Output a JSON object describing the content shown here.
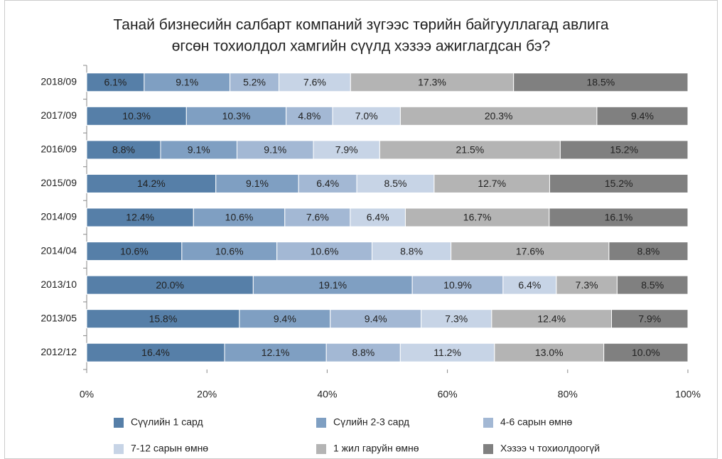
{
  "chart_data": {
    "type": "bar",
    "orientation": "horizontal",
    "stack": "percent",
    "title": [
      "Танай бизнесийн салбарт компаний зүгээс төрийн байгууллагад авлига",
      "өгсөн тохиолдол хамгийн сүүлд хэзээ ажиглагдсан бэ?"
    ],
    "categories": [
      "2018/09",
      "2017/09",
      "2016/09",
      "2015/09",
      "2014/09",
      "2014/04",
      "2013/10",
      "2013/05",
      "2012/12"
    ],
    "xlim": [
      0,
      100
    ],
    "xticks": [
      {
        "value": 0,
        "label": "0%"
      },
      {
        "value": 20,
        "label": "20%"
      },
      {
        "value": 40,
        "label": "40%"
      },
      {
        "value": 60,
        "label": "60%"
      },
      {
        "value": 80,
        "label": "80%"
      },
      {
        "value": 100,
        "label": "100%"
      }
    ],
    "legend": "bottom",
    "series": [
      {
        "name": "Сүүлийн 1 сард",
        "color": "#567fa8",
        "values": [
          6.1,
          10.3,
          8.8,
          14.2,
          12.4,
          10.6,
          20.0,
          15.8,
          16.4
        ],
        "value_labels": [
          "6.1%",
          "10.3%",
          "8.8%",
          "14.2%",
          "12.4%",
          "10.6%",
          "20.0%",
          "15.8%",
          "16.4%"
        ]
      },
      {
        "name": "Сүлийн 2-3 сард",
        "color": "#7f9fc2",
        "values": [
          9.1,
          10.3,
          9.1,
          9.1,
          10.6,
          10.6,
          19.1,
          9.4,
          12.1
        ],
        "value_labels": [
          "9.1%",
          "10.3%",
          "9.1%",
          "9.1%",
          "10.6%",
          "10.6%",
          "19.1%",
          "9.4%",
          "12.1%"
        ]
      },
      {
        "name": "4-6 сарын өмнө",
        "color": "#a3b8d4",
        "values": [
          5.2,
          4.8,
          9.1,
          6.4,
          7.6,
          10.6,
          10.9,
          9.4,
          8.8
        ],
        "value_labels": [
          "5.2%",
          "4.8%",
          "9.1%",
          "6.4%",
          "7.6%",
          "10.6%",
          "10.9%",
          "9.4%",
          "8.8%"
        ]
      },
      {
        "name": "7-12 сарын өмнө",
        "color": "#c7d4e6",
        "values": [
          7.6,
          7.0,
          7.9,
          8.5,
          6.4,
          8.8,
          6.4,
          7.3,
          11.2
        ],
        "value_labels": [
          "7.6%",
          "7.0%",
          "7.9%",
          "8.5%",
          "6.4%",
          "8.8%",
          "6.4%",
          "7.3%",
          "11.2%"
        ]
      },
      {
        "name": "1 жил гаруйн өмнө",
        "color": "#b4b4b4",
        "values": [
          17.3,
          20.3,
          21.5,
          12.7,
          16.7,
          17.6,
          7.3,
          12.4,
          13.0
        ],
        "value_labels": [
          "17.3%",
          "20.3%",
          "21.5%",
          "12.7%",
          "16.7%",
          "17.6%",
          "7.3%",
          "12.4%",
          "13.0%"
        ]
      },
      {
        "name": "Хэзээ ч тохиолдоогүй",
        "color": "#808080",
        "values": [
          18.5,
          9.4,
          15.2,
          15.2,
          16.1,
          8.8,
          8.5,
          7.9,
          10.0
        ],
        "value_labels": [
          "18.5%",
          "9.4%",
          "15.2%",
          "15.2%",
          "16.1%",
          "8.8%",
          "8.5%",
          "7.9%",
          "10.0%"
        ]
      }
    ]
  }
}
